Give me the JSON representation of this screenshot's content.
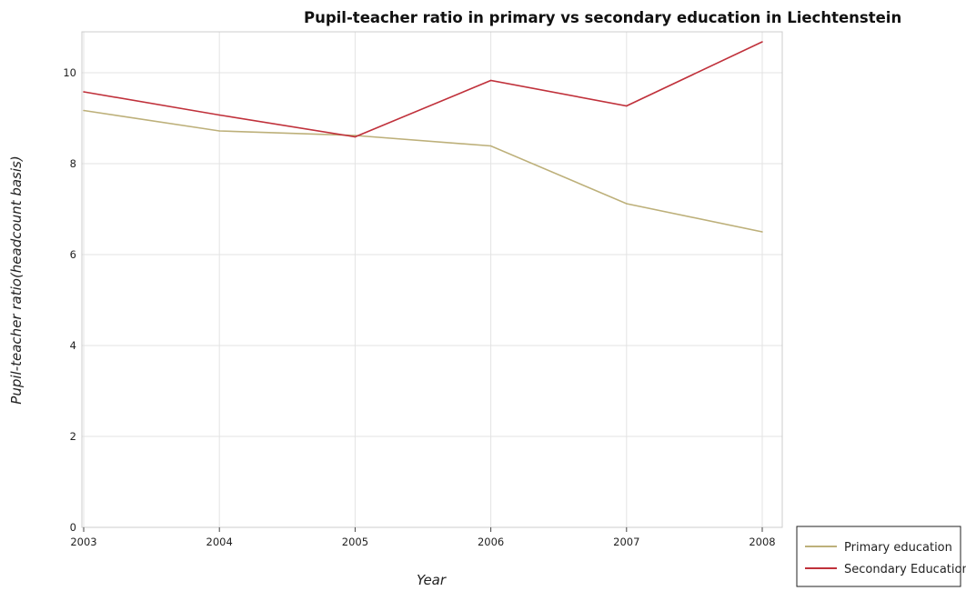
{
  "chart_data": {
    "type": "line",
    "title": "Pupil-teacher ratio in primary vs secondary education in Liechtenstein",
    "xlabel": "Year",
    "ylabel": "Pupil-teacher ratio(headcount basis)",
    "categories": [
      "2003",
      "2004",
      "2005",
      "2006",
      "2007",
      "2008"
    ],
    "ylim": [
      0,
      10.9
    ],
    "yticks": [
      0,
      2,
      4,
      6,
      8,
      10
    ],
    "grid": true,
    "legend_position": "bottom-right",
    "series": [
      {
        "name": "Primary education",
        "color": "#bdb07a",
        "values": [
          9.17,
          8.72,
          8.62,
          8.39,
          7.12,
          6.5
        ]
      },
      {
        "name": "Secondary Education",
        "color": "#c0313b",
        "values": [
          9.58,
          9.07,
          8.59,
          9.83,
          9.27,
          10.68
        ]
      }
    ]
  }
}
